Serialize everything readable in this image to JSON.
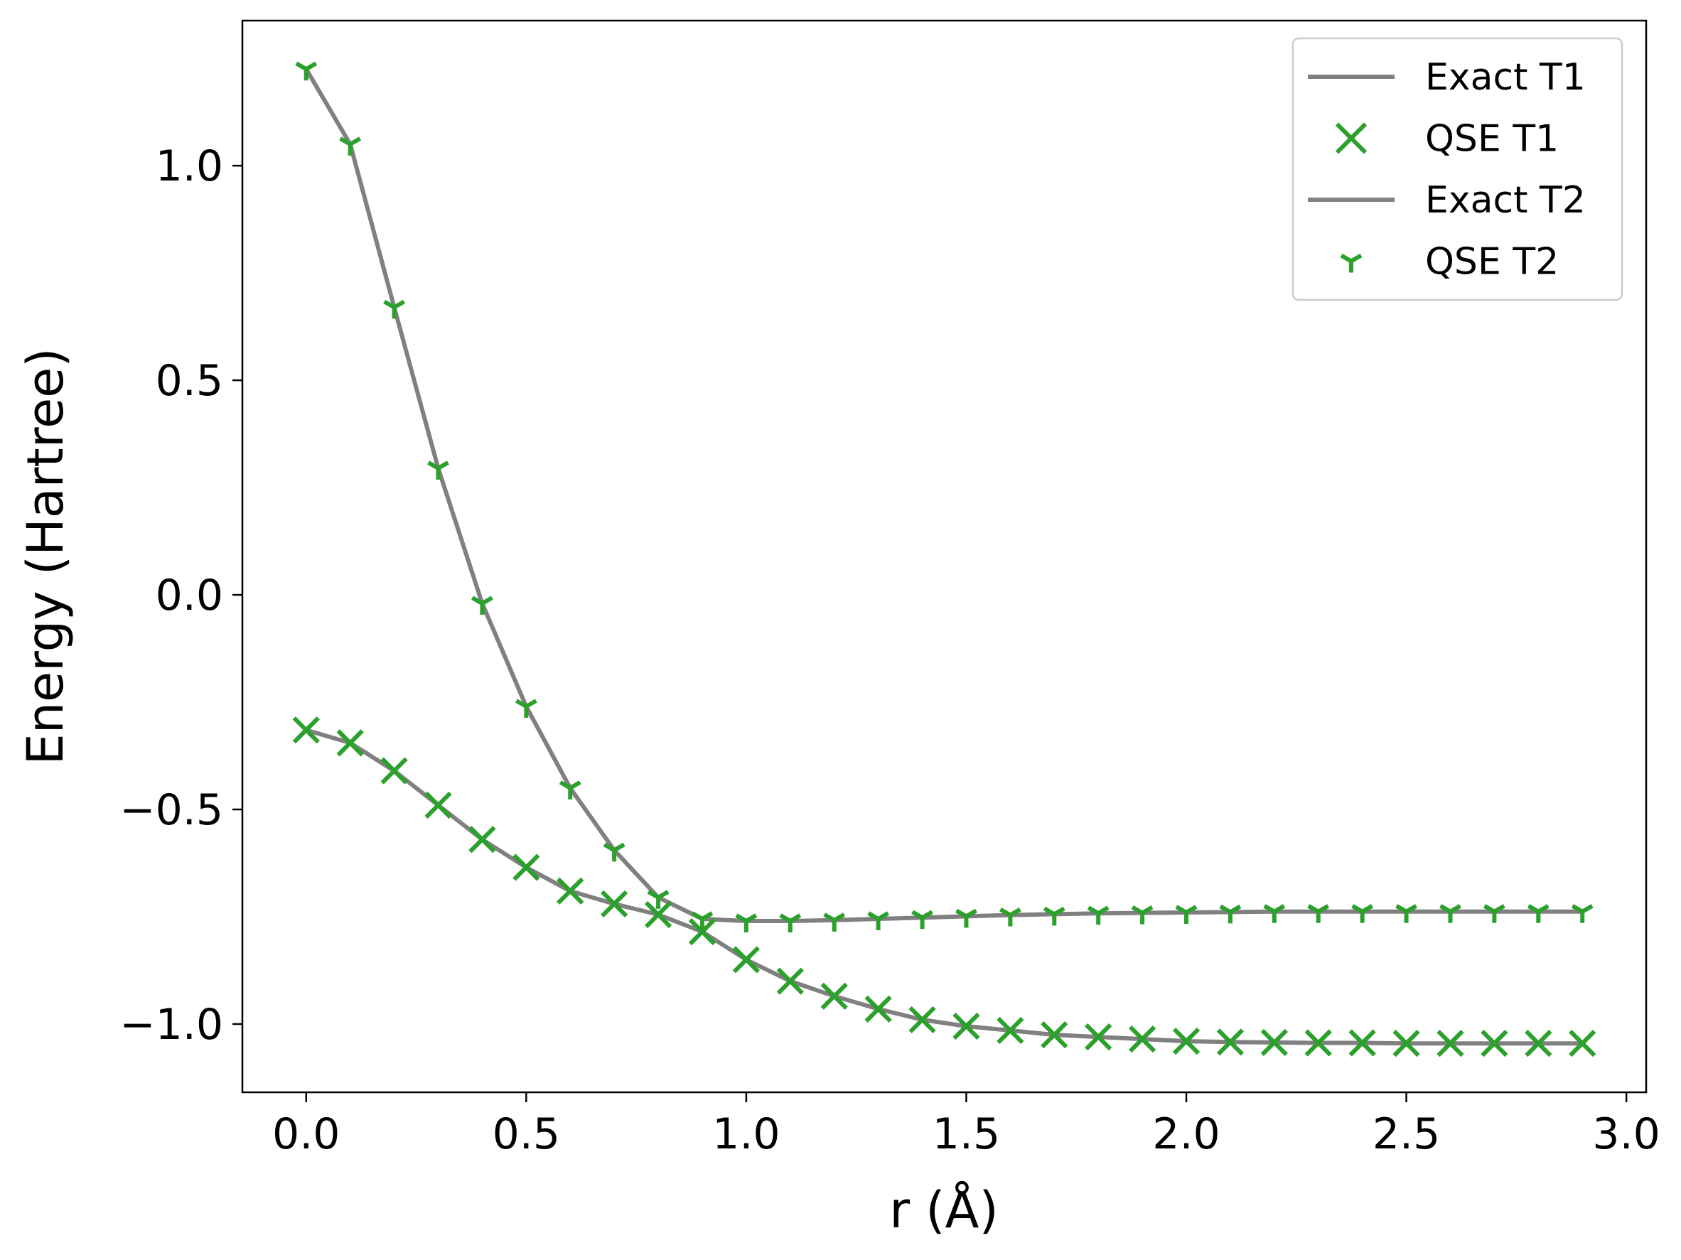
{
  "chart_data": {
    "type": "line",
    "title": "",
    "xlabel": "r (Å)",
    "ylabel": "Energy (Hartree)",
    "xlim": [
      -0.145,
      3.045
    ],
    "ylim": [
      -1.159,
      1.338
    ],
    "xticks": [
      0.0,
      0.5,
      1.0,
      1.5,
      2.0,
      2.5,
      3.0
    ],
    "xtick_labels": [
      "0.0",
      "0.5",
      "1.0",
      "1.5",
      "2.0",
      "2.5",
      "3.0"
    ],
    "yticks": [
      -1.0,
      -0.5,
      0.0,
      0.5,
      1.0
    ],
    "ytick_labels": [
      "−1.0",
      "−0.5",
      "0.0",
      "0.5",
      "1.0"
    ],
    "grid": false,
    "legend_position": "top-right",
    "x": [
      0.0,
      0.1,
      0.2,
      0.3,
      0.4,
      0.5,
      0.6,
      0.7,
      0.8,
      0.9,
      1.0,
      1.1,
      1.2,
      1.3,
      1.4,
      1.5,
      1.6,
      1.7,
      1.8,
      1.9,
      2.0,
      2.1,
      2.2,
      2.3,
      2.4,
      2.5,
      2.6,
      2.7,
      2.8,
      2.9
    ],
    "series": [
      {
        "name": "Exact T1",
        "style": "line",
        "color": "#808080",
        "values": [
          -0.315,
          -0.345,
          -0.41,
          -0.49,
          -0.57,
          -0.635,
          -0.69,
          -0.72,
          -0.745,
          -0.785,
          -0.85,
          -0.9,
          -0.935,
          -0.965,
          -0.99,
          -1.005,
          -1.015,
          -1.025,
          -1.03,
          -1.035,
          -1.04,
          -1.042,
          -1.043,
          -1.044,
          -1.044,
          -1.045,
          -1.045,
          -1.045,
          -1.045,
          -1.045
        ]
      },
      {
        "name": "QSE T1",
        "style": "marker-x",
        "color": "#2ca02c",
        "values": [
          -0.315,
          -0.345,
          -0.41,
          -0.49,
          -0.57,
          -0.635,
          -0.69,
          -0.72,
          -0.745,
          -0.785,
          -0.85,
          -0.9,
          -0.935,
          -0.965,
          -0.99,
          -1.005,
          -1.015,
          -1.025,
          -1.03,
          -1.035,
          -1.04,
          -1.042,
          -1.043,
          -1.044,
          -1.044,
          -1.045,
          -1.045,
          -1.045,
          -1.045,
          -1.045
        ]
      },
      {
        "name": "Exact T2",
        "style": "line",
        "color": "#808080",
        "values": [
          1.225,
          1.05,
          0.67,
          0.295,
          -0.02,
          -0.26,
          -0.45,
          -0.595,
          -0.705,
          -0.755,
          -0.76,
          -0.76,
          -0.758,
          -0.755,
          -0.752,
          -0.749,
          -0.746,
          -0.744,
          -0.742,
          -0.741,
          -0.74,
          -0.739,
          -0.738,
          -0.738,
          -0.738,
          -0.738,
          -0.738,
          -0.738,
          -0.738,
          -0.738
        ]
      },
      {
        "name": "QSE T2",
        "style": "marker-tri",
        "color": "#2ca02c",
        "values": [
          1.225,
          1.05,
          0.67,
          0.295,
          -0.02,
          -0.26,
          -0.45,
          -0.595,
          -0.705,
          -0.755,
          -0.76,
          -0.76,
          -0.758,
          -0.755,
          -0.752,
          -0.749,
          -0.746,
          -0.744,
          -0.742,
          -0.741,
          -0.74,
          -0.739,
          -0.738,
          -0.738,
          -0.738,
          -0.738,
          -0.738,
          -0.738,
          -0.738,
          -0.738
        ]
      }
    ]
  }
}
